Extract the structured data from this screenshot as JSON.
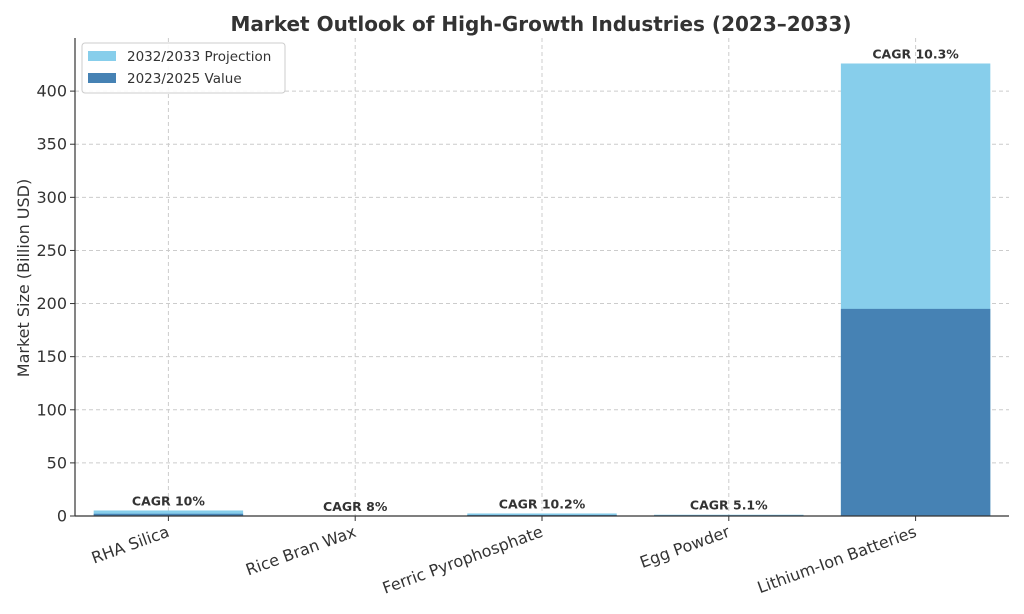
{
  "chart_data": {
    "type": "bar",
    "stacked_overlay": true,
    "title": "Market Outlook of High-Growth Industries (2023–2033)",
    "xlabel": "",
    "ylabel": "Market Size (Billion USD)",
    "ylim": [
      0,
      450
    ],
    "yticks": [
      0,
      50,
      100,
      150,
      200,
      250,
      300,
      350,
      400
    ],
    "grid": true,
    "legend_position": "top-left",
    "categories": [
      "RHA Silica",
      "Rice Bran Wax",
      "Ferric Pyrophosphate",
      "Egg Powder",
      "Lithium-Ion Batteries"
    ],
    "series": [
      {
        "name": "2032/2033 Projection",
        "color": "#87CEEB",
        "values": [
          5.2,
          0.2,
          2.4,
          1.2,
          426
        ]
      },
      {
        "name": "2023/2025 Value",
        "color": "#4682B4",
        "values": [
          2.1,
          0.1,
          1.0,
          0.7,
          195
        ]
      }
    ],
    "annotations": [
      "CAGR 10%",
      "CAGR 8%",
      "CAGR 10.2%",
      "CAGR 5.1%",
      "CAGR 10.3%"
    ]
  }
}
